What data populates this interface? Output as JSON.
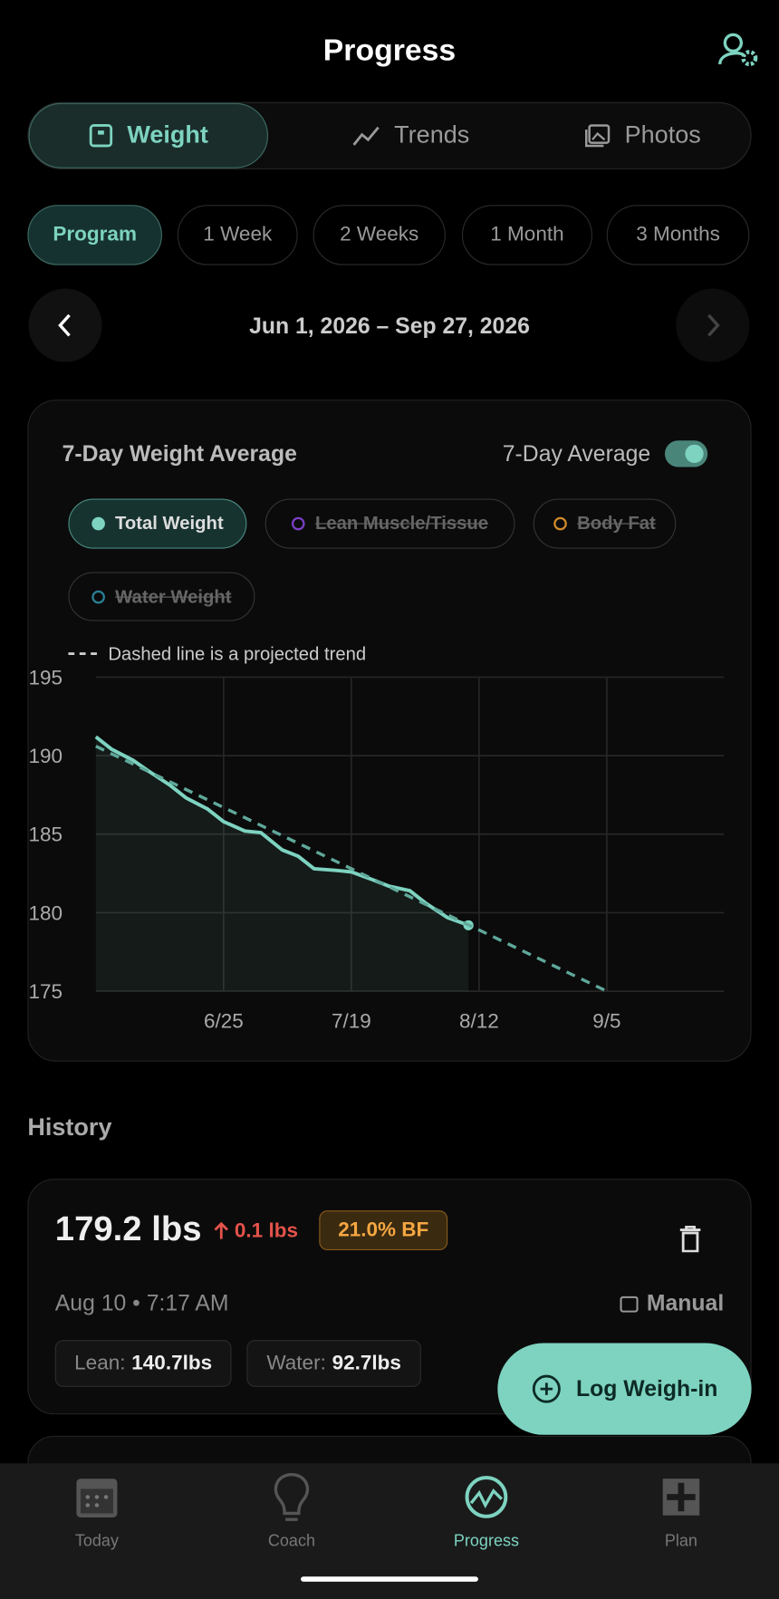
{
  "header": {
    "title": "Progress"
  },
  "tabs": [
    "Weight",
    "Trends",
    "Photos"
  ],
  "ranges": [
    "Program",
    "1 Week",
    "2 Weeks",
    "1 Month",
    "3 Months"
  ],
  "date_range": "Jun 1, 2026 – Sep 27, 2026",
  "chart_card": {
    "title": "7-Day Weight Average",
    "toggle_label": "7-Day Average",
    "filters": [
      "Lean Muscle/Tissue",
      "Body Fat",
      "Water Weight"
    ]
  },
  "chart_data": {
    "type": "line",
    "annotation": "Dashed line is a projected trend",
    "xlim": [
      "6/1",
      "9/27"
    ],
    "xticks": [
      "6/25",
      "7/19",
      "8/12",
      "9/5"
    ],
    "ylim": [
      175,
      195
    ],
    "yticks": [
      195,
      190,
      185,
      180,
      175
    ],
    "grid": true,
    "series": [
      {
        "name": "Total Weight",
        "color": "#7dd3c0",
        "x": [
          "6/1",
          "6/4",
          "6/8",
          "6/11",
          "6/15",
          "6/18",
          "6/22",
          "6/25",
          "6/29",
          "7/2",
          "7/6",
          "7/9",
          "7/12",
          "7/16",
          "7/19",
          "7/23",
          "7/26",
          "7/30",
          "8/2",
          "8/6",
          "8/10"
        ],
        "values": [
          191.2,
          190.4,
          189.7,
          189.0,
          188.1,
          187.3,
          186.6,
          185.8,
          185.2,
          185.1,
          184.0,
          183.6,
          182.8,
          182.7,
          182.6,
          182.1,
          181.7,
          181.4,
          180.6,
          179.7,
          179.2
        ]
      },
      {
        "color": "#5fa89a",
        "dashed": true,
        "x": [
          "6/1",
          "9/5"
        ],
        "values": [
          190.6,
          175
        ]
      }
    ]
  },
  "history": {
    "title": "History",
    "entries": [
      {
        "weight": "179.2 lbs",
        "change": "0.1 lbs",
        "body_fat": "21.0% BF",
        "date": "Aug 10 • 7:17 AM",
        "source": "Manual",
        "lean_label": "Lean:",
        "lean": "140.7lbs",
        "water_label": "Water:",
        "water": "92.7lbs"
      }
    ]
  },
  "fab": "Log Weigh-in",
  "nav": [
    "Today",
    "Coach",
    "Progress",
    "Plan"
  ]
}
